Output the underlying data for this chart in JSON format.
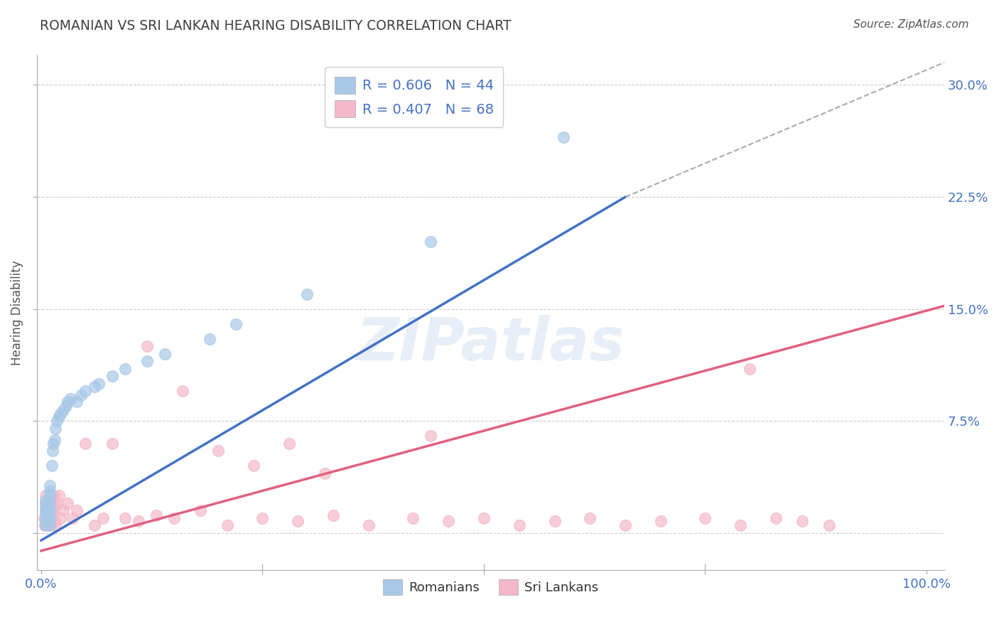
{
  "title": "ROMANIAN VS SRI LANKAN HEARING DISABILITY CORRELATION CHART",
  "source": "Source: ZipAtlas.com",
  "ylabel": "Hearing Disability",
  "xlim": [
    -0.005,
    1.02
  ],
  "ylim": [
    -0.025,
    0.32
  ],
  "xticks": [
    0.0,
    1.0
  ],
  "xtick_labels": [
    "0.0%",
    "100.0%"
  ],
  "yticks": [
    0.0,
    0.075,
    0.15,
    0.225,
    0.3
  ],
  "ytick_labels": [
    "",
    "7.5%",
    "15.0%",
    "22.5%",
    "30.0%"
  ],
  "romanian_R": 0.606,
  "romanian_N": 44,
  "srilankan_R": 0.407,
  "srilankan_N": 68,
  "romanian_color": "#a8c8e8",
  "srilankan_color": "#f4b8c8",
  "romanian_line_color": "#4472c4",
  "srilankan_line_color": "#e06080",
  "dashed_line_color": "#aaaaaa",
  "watermark": "ZIPatlas",
  "legend_label1": "Romanians",
  "legend_label2": "Sri Lankans",
  "romanian_x": [
    0.005,
    0.005,
    0.005,
    0.005,
    0.005,
    0.005,
    0.006,
    0.007,
    0.007,
    0.008,
    0.009,
    0.01,
    0.01,
    0.01,
    0.01,
    0.01,
    0.01,
    0.01,
    0.012,
    0.013,
    0.014,
    0.015,
    0.016,
    0.018,
    0.02,
    0.022,
    0.025,
    0.028,
    0.03,
    0.033,
    0.04,
    0.045,
    0.05,
    0.06,
    0.065,
    0.08,
    0.095,
    0.12,
    0.14,
    0.19,
    0.22,
    0.3,
    0.44,
    0.59
  ],
  "romanian_y": [
    0.005,
    0.01,
    0.013,
    0.016,
    0.02,
    0.022,
    0.008,
    0.012,
    0.015,
    0.018,
    0.01,
    0.005,
    0.01,
    0.015,
    0.02,
    0.025,
    0.028,
    0.032,
    0.045,
    0.055,
    0.06,
    0.062,
    0.07,
    0.075,
    0.078,
    0.08,
    0.082,
    0.085,
    0.088,
    0.09,
    0.088,
    0.092,
    0.095,
    0.098,
    0.1,
    0.105,
    0.11,
    0.115,
    0.12,
    0.13,
    0.14,
    0.16,
    0.195,
    0.265
  ],
  "srilankan_x": [
    0.003,
    0.004,
    0.005,
    0.005,
    0.005,
    0.005,
    0.005,
    0.006,
    0.006,
    0.007,
    0.007,
    0.008,
    0.008,
    0.009,
    0.009,
    0.01,
    0.01,
    0.01,
    0.011,
    0.012,
    0.012,
    0.013,
    0.014,
    0.015,
    0.015,
    0.016,
    0.018,
    0.02,
    0.022,
    0.025,
    0.03,
    0.035,
    0.04,
    0.05,
    0.06,
    0.07,
    0.08,
    0.095,
    0.11,
    0.13,
    0.15,
    0.18,
    0.21,
    0.25,
    0.29,
    0.33,
    0.37,
    0.42,
    0.46,
    0.5,
    0.54,
    0.58,
    0.62,
    0.66,
    0.7,
    0.75,
    0.79,
    0.83,
    0.86,
    0.89,
    0.12,
    0.16,
    0.2,
    0.24,
    0.28,
    0.32,
    0.8,
    0.44
  ],
  "srilankan_y": [
    0.01,
    0.005,
    0.005,
    0.01,
    0.015,
    0.02,
    0.025,
    0.005,
    0.015,
    0.008,
    0.018,
    0.01,
    0.02,
    0.012,
    0.022,
    0.005,
    0.01,
    0.018,
    0.008,
    0.012,
    0.02,
    0.015,
    0.025,
    0.008,
    0.018,
    0.005,
    0.02,
    0.025,
    0.01,
    0.015,
    0.02,
    0.01,
    0.015,
    0.06,
    0.005,
    0.01,
    0.06,
    0.01,
    0.008,
    0.012,
    0.01,
    0.015,
    0.005,
    0.01,
    0.008,
    0.012,
    0.005,
    0.01,
    0.008,
    0.01,
    0.005,
    0.008,
    0.01,
    0.005,
    0.008,
    0.01,
    0.005,
    0.01,
    0.008,
    0.005,
    0.125,
    0.095,
    0.055,
    0.045,
    0.06,
    0.04,
    0.11,
    0.065
  ],
  "romanian_line_x0": 0.0,
  "romanian_line_y0": -0.005,
  "romanian_line_x1": 0.66,
  "romanian_line_y1": 0.225,
  "dashed_line_x0": 0.66,
  "dashed_line_y0": 0.225,
  "dashed_line_x1": 1.02,
  "dashed_line_y1": 0.315,
  "srilankan_line_x0": 0.0,
  "srilankan_line_y0": -0.012,
  "srilankan_line_x1": 1.02,
  "srilankan_line_y1": 0.152,
  "background_color": "#ffffff",
  "grid_color": "#cccccc",
  "tick_color": "#4472c4",
  "title_color": "#404040",
  "source_color": "#555555"
}
